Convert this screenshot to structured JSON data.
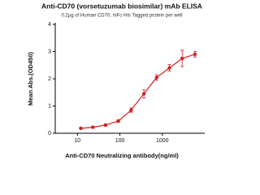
{
  "chart_data": {
    "type": "scatter",
    "title": "Anti-CD70 (vorsetuzumab biosimilar) mAb ELISA",
    "subtitle": "0.2μg of Human CD70, mFc-His Tagged protein per well",
    "x_label": "Anti-CD70 Neutralizing antibody(ng/ml)",
    "y_label": "Mean Abs.(OD450)",
    "log_x": true,
    "xlim": [
      3,
      10000
    ],
    "xticks": [
      10,
      100,
      1000
    ],
    "ylim": [
      0,
      4
    ],
    "yticks": [
      0,
      1,
      2,
      3,
      4
    ],
    "series": [
      {
        "color": "#d42020",
        "x": [
          12,
          23,
          46,
          92,
          184,
          368,
          735,
          1470,
          2940,
          5880
        ],
        "values": [
          0.18,
          0.22,
          0.3,
          0.45,
          0.85,
          1.45,
          2.05,
          2.4,
          2.75,
          2.9
        ],
        "errors": [
          0.03,
          0.03,
          0.04,
          0.05,
          0.08,
          0.15,
          0.1,
          0.12,
          0.3,
          0.1
        ]
      }
    ]
  }
}
